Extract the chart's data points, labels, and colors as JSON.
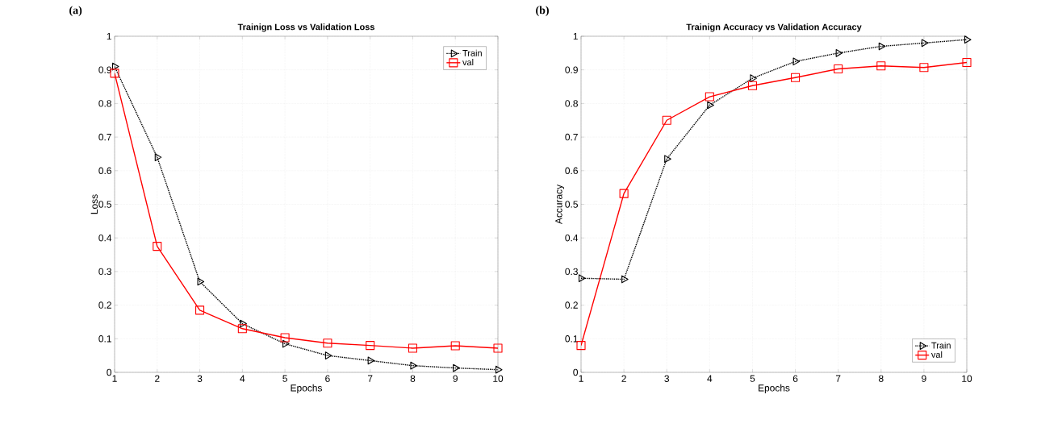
{
  "chart_data": [
    {
      "type": "line",
      "title": "Trainign Loss vs Validation Loss",
      "xlabel": "Epochs",
      "ylabel": "Loss",
      "annotations": [
        "(a)"
      ],
      "x": [
        1,
        2,
        3,
        4,
        5,
        6,
        7,
        8,
        9,
        10
      ],
      "xlim": [
        1,
        10
      ],
      "xticks": [
        1,
        2,
        3,
        4,
        5,
        6,
        7,
        8,
        9,
        10
      ],
      "ylim": [
        0,
        1
      ],
      "yticks": [
        0,
        0.1,
        0.2,
        0.3,
        0.4,
        0.5,
        0.6,
        0.7,
        0.8,
        0.9,
        1
      ],
      "grid": true,
      "legend": "top right",
      "series": [
        {
          "name": "Train",
          "color": "#000000",
          "marker": "triangle",
          "line_style": "dotted",
          "values": [
            0.91,
            0.64,
            0.27,
            0.145,
            0.085,
            0.05,
            0.035,
            0.02,
            0.013,
            0.008
          ]
        },
        {
          "name": "val",
          "color": "#ff0000",
          "marker": "square",
          "line_style": "solid",
          "values": [
            0.89,
            0.375,
            0.185,
            0.13,
            0.103,
            0.087,
            0.08,
            0.072,
            0.079,
            0.072
          ]
        }
      ]
    },
    {
      "type": "line",
      "title": "Trainign Accuracy vs Validation Accuracy",
      "xlabel": "Epochs",
      "ylabel": "Accuracy",
      "annotations": [
        "(b)"
      ],
      "x": [
        1,
        2,
        3,
        4,
        5,
        6,
        7,
        8,
        9,
        10
      ],
      "xlim": [
        1,
        10
      ],
      "xticks": [
        1,
        2,
        3,
        4,
        5,
        6,
        7,
        8,
        9,
        10
      ],
      "ylim": [
        0,
        1
      ],
      "yticks": [
        0,
        0.1,
        0.2,
        0.3,
        0.4,
        0.5,
        0.6,
        0.7,
        0.8,
        0.9,
        1
      ],
      "grid": true,
      "legend": "bottom right",
      "series": [
        {
          "name": "Train",
          "color": "#000000",
          "marker": "triangle",
          "line_style": "dotted",
          "values": [
            0.28,
            0.277,
            0.635,
            0.795,
            0.875,
            0.925,
            0.95,
            0.97,
            0.98,
            0.99
          ]
        },
        {
          "name": "val",
          "color": "#ff0000",
          "marker": "square",
          "line_style": "solid",
          "values": [
            0.08,
            0.532,
            0.75,
            0.82,
            0.853,
            0.877,
            0.903,
            0.912,
            0.907,
            0.922
          ]
        }
      ]
    }
  ]
}
